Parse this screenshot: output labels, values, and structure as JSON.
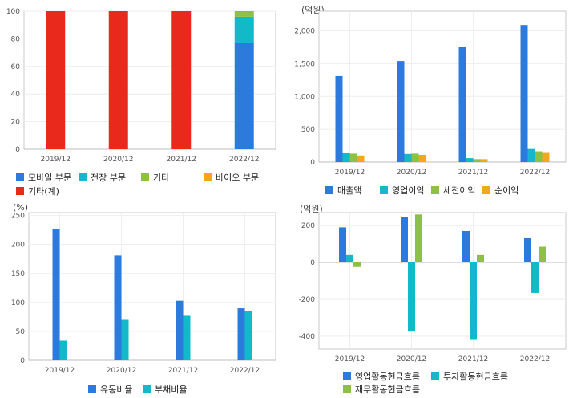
{
  "colors": {
    "blue": "#2c7bdc",
    "teal": "#13b9c8",
    "green": "#8ec045",
    "orange": "#f2a71c",
    "red": "#e8291c"
  },
  "chart_data": [
    {
      "type": "bar",
      "stacked": true,
      "title": "",
      "unit": "",
      "categories": [
        "2019/12",
        "2020/12",
        "2021/12",
        "2022/12"
      ],
      "ylim": [
        0,
        100
      ],
      "yticks": [
        "0",
        "20",
        "40",
        "60",
        "80",
        "100"
      ],
      "series": [
        {
          "name": "모바일 부문",
          "color": "#2c7bdc",
          "values": [
            0,
            0,
            0,
            77
          ]
        },
        {
          "name": "전장 부문",
          "color": "#13b9c8",
          "values": [
            0,
            0,
            0,
            19
          ]
        },
        {
          "name": "기타",
          "color": "#8ec045",
          "values": [
            0,
            0,
            0,
            4
          ]
        },
        {
          "name": "바이오 부문",
          "color": "#f2a71c",
          "values": [
            0,
            0,
            0,
            0
          ]
        },
        {
          "name": "기타(계)",
          "color": "#e8291c",
          "values": [
            100,
            100,
            100,
            0
          ]
        }
      ],
      "grid": true
    },
    {
      "type": "bar",
      "title": "",
      "unit": "(억원)",
      "categories": [
        "2019/12",
        "2020/12",
        "2021/12",
        "2022/12"
      ],
      "ylim": [
        0,
        2300
      ],
      "yticks": [
        "0",
        "500",
        "1,000",
        "1,500",
        "2,000"
      ],
      "series": [
        {
          "name": "매출액",
          "color": "#2c7bdc",
          "values": [
            1310,
            1540,
            1760,
            2090
          ]
        },
        {
          "name": "영업이익",
          "color": "#13b9c8",
          "values": [
            135,
            125,
            60,
            200
          ]
        },
        {
          "name": "세전이익",
          "color": "#8ec045",
          "values": [
            130,
            130,
            45,
            165
          ]
        },
        {
          "name": "순이익",
          "color": "#f2a71c",
          "values": [
            100,
            110,
            45,
            140
          ]
        }
      ],
      "grid": true
    },
    {
      "type": "bar",
      "title": "",
      "unit": "(%)",
      "categories": [
        "2019/12",
        "2020/12",
        "2021/12",
        "2022/12"
      ],
      "ylim": [
        0,
        255
      ],
      "yticks": [
        "0",
        "50",
        "100",
        "150",
        "200",
        "250"
      ],
      "series": [
        {
          "name": "유동비율",
          "color": "#2c7bdc",
          "values": [
            227,
            181,
            103,
            90
          ]
        },
        {
          "name": "부채비율",
          "color": "#13b9c8",
          "values": [
            34,
            70,
            77,
            85
          ]
        }
      ],
      "grid": true
    },
    {
      "type": "bar",
      "title": "",
      "unit": "(억원)",
      "categories": [
        "2019/12",
        "2020/12",
        "2021/12",
        "2022/12"
      ],
      "ylim": [
        -470,
        270
      ],
      "yticks": [
        "-400",
        "-200",
        "0",
        "200"
      ],
      "series": [
        {
          "name": "영업활동현금흐름",
          "color": "#2c7bdc",
          "values": [
            190,
            245,
            170,
            135
          ]
        },
        {
          "name": "투자활동현금흐름",
          "color": "#13b9c8",
          "values": [
            40,
            -375,
            -420,
            -165
          ]
        },
        {
          "name": "재무활동현금흐름",
          "color": "#8ec045",
          "values": [
            -25,
            260,
            40,
            85
          ]
        }
      ],
      "grid": true
    }
  ]
}
